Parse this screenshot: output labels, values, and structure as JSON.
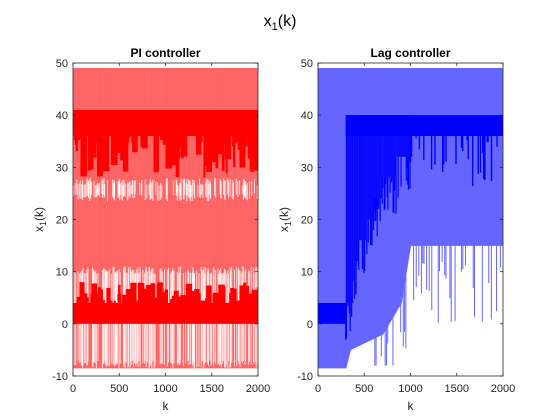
{
  "figure": {
    "suptitle": "x_1(k)"
  },
  "chart_data": [
    {
      "type": "line",
      "title": "PI controller",
      "xlabel": "k",
      "ylabel": "x_1(k)",
      "xlim": [
        0,
        2000
      ],
      "ylim": [
        -10,
        50
      ],
      "xticks": [
        "0",
        "500",
        "1000",
        "1500",
        "2000"
      ],
      "yticks": [
        "-10",
        "0",
        "10",
        "20",
        "30",
        "40",
        "50"
      ],
      "grid": false,
      "series": [
        {
          "color_light": "#ff6666",
          "color_dark": "#ff0000",
          "envelope": [
            [
              0,
              -8.5,
              49
            ],
            [
              2000,
              -8.5,
              49
            ]
          ],
          "light_gaps": [
            {
              "k": [
                0,
                2000
              ],
              "y": [
                23.5,
                28
              ]
            },
            {
              "k": [
                0,
                2000
              ],
              "y": [
                -8.5,
                11
              ]
            }
          ],
          "dark_bands": [
            {
              "k": [
                0,
                2000
              ],
              "y": [
                36,
                41
              ]
            },
            {
              "k": [
                0,
                2000
              ],
              "y": [
                0,
                4
              ]
            }
          ],
          "dark_spikes": [
            {
              "k": [
                0,
                2000
              ],
              "y": [
                28,
                36
              ]
            },
            {
              "k": [
                0,
                2000
              ],
              "y": [
                4,
                8
              ]
            }
          ]
        }
      ]
    },
    {
      "type": "line",
      "title": "Lag controller",
      "xlabel": "k",
      "ylabel": "x_1(k)",
      "xlim": [
        0,
        2000
      ],
      "ylim": [
        -10,
        50
      ],
      "xticks": [
        "0",
        "500",
        "1000",
        "1500",
        "2000"
      ],
      "yticks": [
        "-10",
        "0",
        "10",
        "20",
        "30",
        "40",
        "50"
      ],
      "grid": false,
      "series": [
        {
          "color_light": "#6666ff",
          "color_dark": "#0000ff",
          "envelope": [
            [
              0,
              -8.5,
              49
            ],
            [
              300,
              -8.5,
              49
            ],
            [
              350,
              -5,
              49
            ],
            [
              700,
              -2,
              49
            ],
            [
              900,
              4,
              49
            ],
            [
              1000,
              15,
              49
            ],
            [
              2000,
              15,
              49
            ]
          ],
          "dark_bands": [
            {
              "k": [
                0,
                300
              ],
              "y": [
                0,
                4
              ]
            },
            {
              "k": [
                300,
                2000
              ],
              "y": [
                36,
                40
              ]
            }
          ],
          "dark_stairs": [
            [
              300,
              4
            ],
            [
              380,
              12
            ],
            [
              440,
              16
            ],
            [
              520,
              20
            ],
            [
              600,
              24
            ],
            [
              700,
              28
            ],
            [
              850,
              32
            ],
            [
              1000,
              35
            ]
          ]
        }
      ]
    }
  ]
}
